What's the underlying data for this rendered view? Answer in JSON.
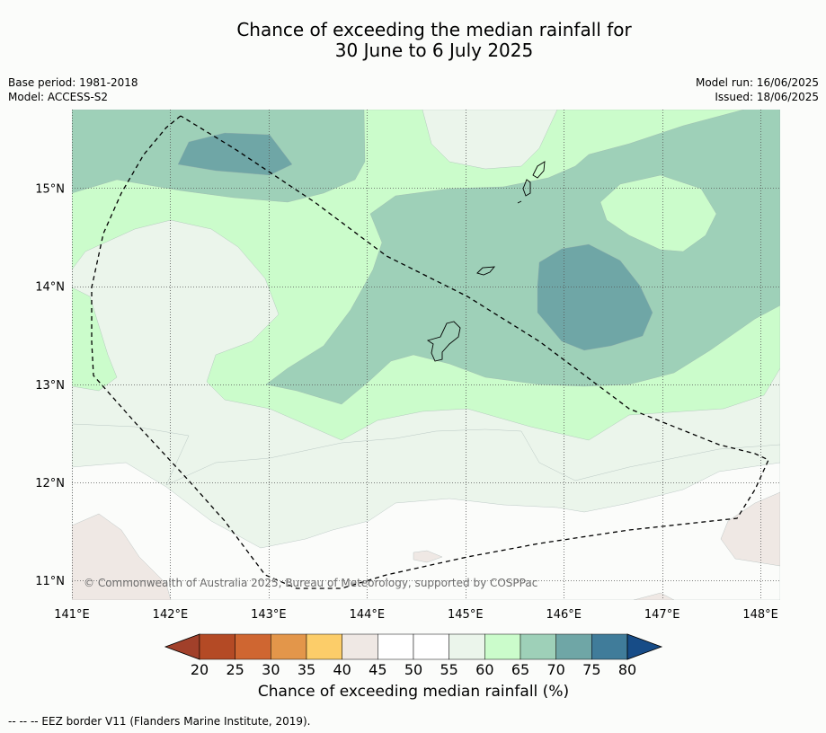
{
  "title_line1": "Chance of exceeding the median rainfall for",
  "title_line2": "30 June to 6 July 2025",
  "base_period": "Base period: 1981-2018",
  "model": "Model: ACCESS-S2",
  "model_run": "Model run: 16/06/2025",
  "issued": "Issued: 18/06/2025",
  "copyright": "© Commonwealth of Australia 2025, Bureau of Meteorology, supported by COSPPac",
  "footnote": "--  --  -- EEZ border V11 (Flanders Marine Institute, 2019).",
  "colorbar": {
    "label": "Chance of exceeding median rainfall (%)",
    "ticks": [
      "20",
      "25",
      "30",
      "35",
      "40",
      "45",
      "50",
      "55",
      "60",
      "65",
      "70",
      "75",
      "80"
    ],
    "colors": [
      "#b44a25",
      "#cf6631",
      "#e3964a",
      "#fccd69",
      "#efe8e4",
      "#ffffff",
      "#ffffff",
      "#ebf5eb",
      "#cbfccb",
      "#9ed0b8",
      "#6fa6a6",
      "#407c9a"
    ],
    "under_color": "#a1402a",
    "over_color": "#174c87"
  },
  "axes": {
    "lon_ticks": [
      "141°E",
      "142°E",
      "143°E",
      "144°E",
      "145°E",
      "146°E",
      "147°E",
      "148°E"
    ],
    "lat_ticks": [
      "15°N",
      "14°N",
      "13°N",
      "12°N",
      "11°N"
    ],
    "lon_values": [
      141,
      142,
      143,
      144,
      145,
      146,
      147,
      148
    ],
    "lat_values": [
      15,
      14,
      13,
      12,
      11
    ],
    "lon_range": [
      141,
      148.2
    ],
    "lat_range": [
      10.8,
      15.8
    ]
  },
  "zone_colors": {
    "p40_45": "#efe8e4",
    "p45_55": "#fbfcfa",
    "p55_60": "#ebf5eb",
    "p60_65": "#cbfccb",
    "p65_70": "#9ed0b8",
    "p70_75": "#6fa6a6"
  }
}
